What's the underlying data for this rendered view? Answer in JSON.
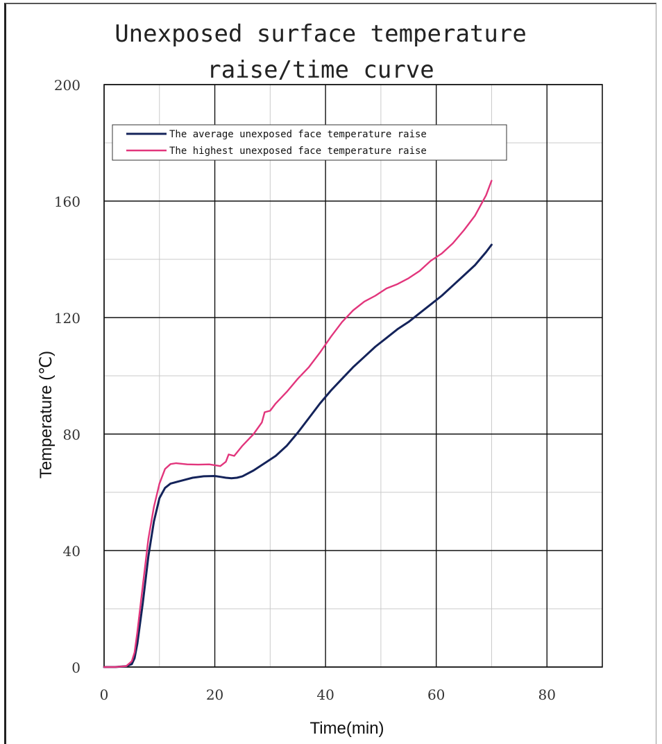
{
  "chart_data": {
    "type": "line",
    "title": [
      "Unexposed surface temperature",
      "raise/time curve"
    ],
    "xlabel": "Time(min)",
    "ylabel": "Temperature (℃)",
    "xlim": [
      0,
      90
    ],
    "ylim": [
      0,
      200
    ],
    "x_ticks": [
      0,
      20,
      40,
      60,
      80
    ],
    "y_ticks": [
      0,
      40,
      80,
      120,
      160,
      200
    ],
    "x_tick_labels": [
      "0",
      "20",
      "40",
      "60",
      "80"
    ],
    "y_tick_labels": [
      "0",
      "40",
      "80",
      "120",
      "160",
      "200"
    ],
    "grid": true,
    "legend_placement": "top-left",
    "series": [
      {
        "name": "The average unexposed face temperature raise",
        "color": "#14235a",
        "points": [
          [
            0,
            0
          ],
          [
            2,
            0
          ],
          [
            4,
            0.3
          ],
          [
            5,
            1
          ],
          [
            5.5,
            3
          ],
          [
            6,
            8
          ],
          [
            7,
            22
          ],
          [
            8,
            38
          ],
          [
            9,
            50
          ],
          [
            10,
            58
          ],
          [
            11,
            61.5
          ],
          [
            12,
            63
          ],
          [
            14,
            64
          ],
          [
            16,
            65
          ],
          [
            18,
            65.5
          ],
          [
            20,
            65.6
          ],
          [
            21,
            65.3
          ],
          [
            22,
            65
          ],
          [
            23,
            64.8
          ],
          [
            24,
            65
          ],
          [
            25,
            65.5
          ],
          [
            27,
            67.5
          ],
          [
            29,
            70
          ],
          [
            31,
            72.5
          ],
          [
            33,
            76
          ],
          [
            35,
            80.5
          ],
          [
            37,
            85.5
          ],
          [
            39,
            90.5
          ],
          [
            41,
            95
          ],
          [
            43,
            99
          ],
          [
            45,
            103
          ],
          [
            47,
            106.5
          ],
          [
            49,
            110
          ],
          [
            51,
            113
          ],
          [
            53,
            116
          ],
          [
            55,
            118.5
          ],
          [
            57,
            121.5
          ],
          [
            59,
            124.5
          ],
          [
            61,
            127.5
          ],
          [
            63,
            131
          ],
          [
            65,
            134.5
          ],
          [
            67,
            138
          ],
          [
            69,
            142.5
          ],
          [
            70,
            145
          ]
        ]
      },
      {
        "name": "The highest unexposed face temperature raise",
        "color": "#e2357c",
        "points": [
          [
            0,
            0
          ],
          [
            2,
            0
          ],
          [
            4,
            0.3
          ],
          [
            5,
            2
          ],
          [
            5.5,
            5
          ],
          [
            6,
            12
          ],
          [
            7,
            28
          ],
          [
            8,
            44
          ],
          [
            9,
            55
          ],
          [
            10,
            63
          ],
          [
            11,
            68
          ],
          [
            12,
            69.7
          ],
          [
            13,
            70
          ],
          [
            15,
            69.6
          ],
          [
            17,
            69.5
          ],
          [
            19,
            69.6
          ],
          [
            20,
            69.3
          ],
          [
            21,
            69
          ],
          [
            22,
            70.5
          ],
          [
            22.5,
            73
          ],
          [
            23.5,
            72.5
          ],
          [
            25,
            76
          ],
          [
            27,
            80
          ],
          [
            28.5,
            84
          ],
          [
            29,
            87.5
          ],
          [
            30,
            88
          ],
          [
            31,
            90.5
          ],
          [
            33,
            94.5
          ],
          [
            35,
            99
          ],
          [
            37,
            103
          ],
          [
            39,
            108
          ],
          [
            41,
            113.5
          ],
          [
            43,
            118.5
          ],
          [
            45,
            122.5
          ],
          [
            47,
            125.5
          ],
          [
            49,
            127.5
          ],
          [
            51,
            130
          ],
          [
            53,
            131.5
          ],
          [
            55,
            133.5
          ],
          [
            57,
            136
          ],
          [
            59,
            139.5
          ],
          [
            61,
            142
          ],
          [
            63,
            145.5
          ],
          [
            65,
            150
          ],
          [
            67,
            155
          ],
          [
            69,
            162
          ],
          [
            70,
            167
          ]
        ]
      }
    ]
  }
}
